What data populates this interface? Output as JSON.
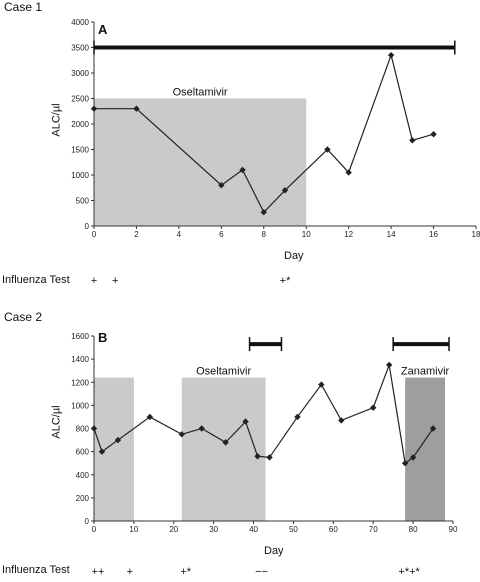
{
  "chart_data": [
    {
      "type": "line",
      "case_title": "Case 1",
      "panel_label": "A",
      "xlabel": "Day",
      "ylabel": "ALC/µl",
      "xlim": [
        0,
        18
      ],
      "ylim": [
        0,
        4000
      ],
      "x_ticks": [
        0,
        2,
        4,
        6,
        8,
        10,
        12,
        14,
        16,
        18
      ],
      "y_ticks": [
        0,
        500,
        1000,
        1500,
        2000,
        2500,
        3000,
        3500,
        4000
      ],
      "series": [
        {
          "x": [
            0,
            2,
            6,
            7,
            8,
            9,
            11,
            12,
            14,
            15,
            16
          ],
          "y": [
            2300,
            2300,
            800,
            1100,
            270,
            700,
            1500,
            1050,
            3350,
            1680,
            1800
          ]
        }
      ],
      "treatments": [
        {
          "label": "Oseltamivir",
          "x_start": 0,
          "x_end": 10,
          "y_top": 2500,
          "color": "#c8cacc"
        }
      ],
      "bars": [
        {
          "x_start": 0,
          "x_end": 17,
          "y": 3500
        }
      ],
      "influenza_test_label": "Influenza Test",
      "influenza_tests": [
        {
          "x": 0,
          "text": "+"
        },
        {
          "x": 1,
          "text": "+"
        },
        {
          "x": 9,
          "text": "+*"
        }
      ]
    },
    {
      "type": "line",
      "case_title": "Case 2",
      "panel_label": "B",
      "xlabel": "Day",
      "ylabel": "ALC/µl",
      "xlim": [
        0,
        90
      ],
      "ylim": [
        0,
        1600
      ],
      "x_ticks": [
        0,
        10,
        20,
        30,
        40,
        50,
        60,
        70,
        80,
        90
      ],
      "y_ticks": [
        0,
        200,
        400,
        600,
        800,
        1000,
        1200,
        1400,
        1600
      ],
      "series": [
        {
          "x": [
            0,
            2,
            6,
            14,
            22,
            27,
            33,
            38,
            41,
            44,
            51,
            57,
            62,
            70,
            74,
            78,
            80,
            85
          ],
          "y": [
            800,
            600,
            700,
            900,
            750,
            800,
            680,
            860,
            560,
            550,
            900,
            1180,
            870,
            980,
            1350,
            500,
            550,
            800
          ]
        }
      ],
      "treatments": [
        {
          "label": "",
          "x_start": 0,
          "x_end": 10,
          "y_top": 1240,
          "color": "#c8cacc"
        },
        {
          "label": "Oseltamivir",
          "x_start": 22,
          "x_end": 43,
          "y_top": 1240,
          "color": "#c8cacc"
        },
        {
          "label": "Zanamivir",
          "x_start": 78,
          "x_end": 88,
          "y_top": 1240,
          "color": "#9e9e9e"
        }
      ],
      "bars": [
        {
          "x_start": 39,
          "x_end": 47,
          "y": 1530
        },
        {
          "x_start": 75,
          "x_end": 89,
          "y": 1530
        }
      ],
      "influenza_test_label": "Influenza Test",
      "influenza_tests": [
        {
          "x": 1,
          "text": "++"
        },
        {
          "x": 9,
          "text": "+"
        },
        {
          "x": 23,
          "text": "+*"
        },
        {
          "x": 42,
          "text": "−−"
        },
        {
          "x": 79,
          "text": "+*+*"
        }
      ]
    }
  ]
}
